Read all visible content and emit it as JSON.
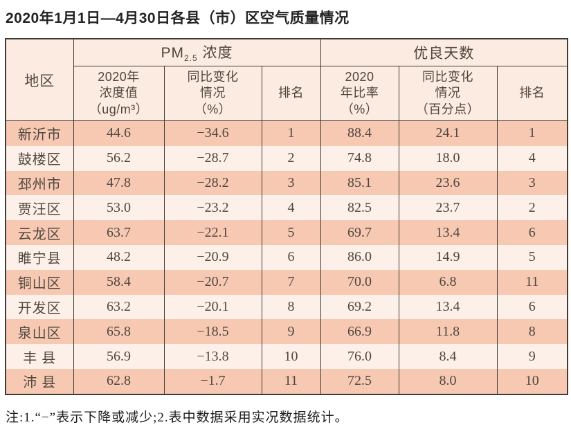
{
  "page": {
    "title": "2020年1月1日—4月30日各县（市）区空气质量情况",
    "note": "注:1.“−”表示下降或减少;2.表中数据采用实况数据统计。"
  },
  "colors": {
    "row_odd": "#f8c9b2",
    "row_even": "#fdf0e9",
    "header_bg": "#fcebe0",
    "border": "#3f3a36",
    "text": "#4e4740"
  },
  "table": {
    "region_header": "地区",
    "pm_group": {
      "prefix": "PM",
      "sub": "2.5",
      "suffix": " 浓度"
    },
    "good_group": "优良天数",
    "sub_headers": {
      "pm_value": "2020年\n浓度值\n（ug/m³）",
      "pm_change": "同比变化\n情况\n（%）",
      "pm_rank": "排名",
      "good_rate": "2020\n年比率\n（%）",
      "good_change": "同比变化\n情况\n（百分点）",
      "good_rank": "排名"
    },
    "column_keys": [
      "region",
      "pm_value",
      "pm_change",
      "pm_rank",
      "good_rate",
      "good_change",
      "good_rank"
    ],
    "rows": [
      {
        "region": "新沂市",
        "pm_value": "44.6",
        "pm_change": "−34.6",
        "pm_rank": "1",
        "good_rate": "88.4",
        "good_change": "24.1",
        "good_rank": "1"
      },
      {
        "region": "鼓楼区",
        "pm_value": "56.2",
        "pm_change": "−28.7",
        "pm_rank": "2",
        "good_rate": "74.8",
        "good_change": "18.0",
        "good_rank": "4"
      },
      {
        "region": "邳州市",
        "pm_value": "47.8",
        "pm_change": "−28.2",
        "pm_rank": "3",
        "good_rate": "85.1",
        "good_change": "23.6",
        "good_rank": "3"
      },
      {
        "region": "贾汪区",
        "pm_value": "53.0",
        "pm_change": "−23.2",
        "pm_rank": "4",
        "good_rate": "82.5",
        "good_change": "23.7",
        "good_rank": "2"
      },
      {
        "region": "云龙区",
        "pm_value": "63.7",
        "pm_change": "−22.1",
        "pm_rank": "5",
        "good_rate": "69.7",
        "good_change": "13.4",
        "good_rank": "6"
      },
      {
        "region": "睢宁县",
        "pm_value": "48.2",
        "pm_change": "−20.9",
        "pm_rank": "6",
        "good_rate": "86.0",
        "good_change": "14.9",
        "good_rank": "5"
      },
      {
        "region": "铜山区",
        "pm_value": "58.4",
        "pm_change": "−20.7",
        "pm_rank": "7",
        "good_rate": "70.0",
        "good_change": "6.8",
        "good_rank": "11"
      },
      {
        "region": "开发区",
        "pm_value": "63.2",
        "pm_change": "−20.1",
        "pm_rank": "8",
        "good_rate": "69.2",
        "good_change": "13.4",
        "good_rank": "6"
      },
      {
        "region": "泉山区",
        "pm_value": "65.8",
        "pm_change": "−18.5",
        "pm_rank": "9",
        "good_rate": "66.9",
        "good_change": "11.8",
        "good_rank": "8"
      },
      {
        "region": "丰 县",
        "pm_value": "56.9",
        "pm_change": "−13.8",
        "pm_rank": "10",
        "good_rate": "76.0",
        "good_change": "8.4",
        "good_rank": "9"
      },
      {
        "region": "沛 县",
        "pm_value": "62.8",
        "pm_change": "−1.7",
        "pm_rank": "11",
        "good_rate": "72.5",
        "good_change": "8.0",
        "good_rank": "10"
      }
    ]
  }
}
